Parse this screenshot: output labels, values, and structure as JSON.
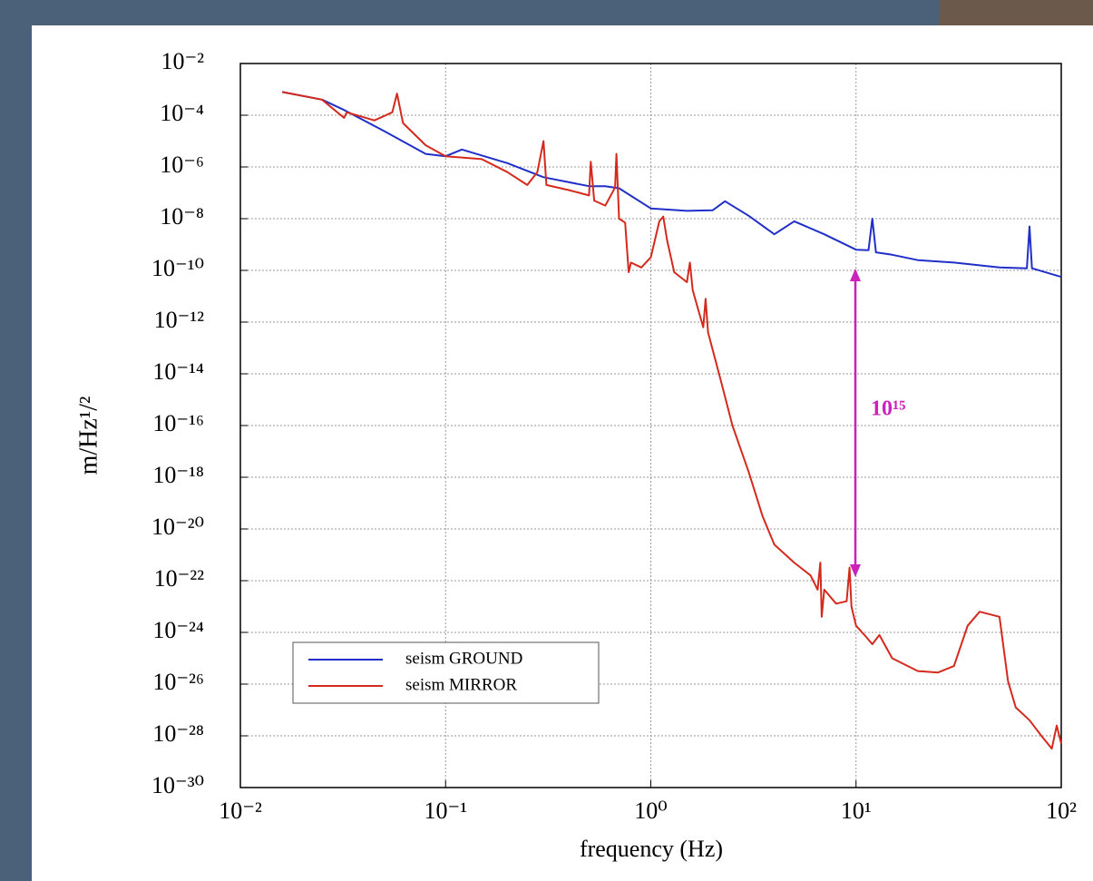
{
  "chart_data": {
    "type": "line",
    "xlabel": "frequency (Hz)",
    "ylabel": "m/Hz¹/²",
    "xscale": "log",
    "yscale": "log",
    "grid": true,
    "legend": "lower left",
    "xlim": [
      0.01,
      100
    ],
    "xticks": [
      {
        "value": 0.01,
        "label": "10⁻²"
      },
      {
        "value": 0.1,
        "label": "10⁻¹"
      },
      {
        "value": 1,
        "label": "10⁰"
      },
      {
        "value": 10,
        "label": "10¹"
      },
      {
        "value": 100,
        "label": "10²"
      }
    ],
    "ylim": [
      1e-30,
      0.01
    ],
    "yticks": [
      {
        "value": 0.01,
        "label": "10⁻²"
      },
      {
        "value": 0.0001,
        "label": "10⁻⁴"
      },
      {
        "value": 1e-06,
        "label": "10⁻⁶"
      },
      {
        "value": 1e-08,
        "label": "10⁻⁸"
      },
      {
        "value": 1e-10,
        "label": "10⁻¹⁰"
      },
      {
        "value": 1e-12,
        "label": "10⁻¹²"
      },
      {
        "value": 1e-14,
        "label": "10⁻¹⁴"
      },
      {
        "value": 1e-16,
        "label": "10⁻¹⁶"
      },
      {
        "value": 1e-18,
        "label": "10⁻¹⁸"
      },
      {
        "value": 1e-20,
        "label": "10⁻²⁰"
      },
      {
        "value": 1e-22,
        "label": "10⁻²²"
      },
      {
        "value": 1e-24,
        "label": "10⁻²⁴"
      },
      {
        "value": 1e-26,
        "label": "10⁻²⁶"
      },
      {
        "value": 1e-28,
        "label": "10⁻²⁸"
      },
      {
        "value": 1e-30,
        "label": "10⁻³⁰"
      }
    ],
    "annotations": [
      {
        "text": "10¹⁵"
      }
    ],
    "series": [
      {
        "name": "seism GROUND",
        "color": "#1f2fc8",
        "x": [
          0.016,
          0.025,
          0.032,
          0.05,
          0.08,
          0.1,
          0.12,
          0.2,
          0.3,
          0.5,
          0.6,
          0.7,
          1.0,
          1.5,
          2,
          2.3,
          3,
          4,
          5,
          7,
          10,
          11.5,
          12,
          12.5,
          15,
          20,
          30,
          50,
          68,
          70,
          72,
          100
        ],
        "values": [
          0.00079,
          0.0004,
          0.00016,
          2.5e-05,
          3.2e-06,
          2.6e-06,
          4.7e-06,
          1.4e-06,
          4e-07,
          1.8e-07,
          1.8e-07,
          1.5e-07,
          2.5e-08,
          2e-08,
          2.1e-08,
          4.7e-08,
          1.3e-08,
          2.5e-09,
          7.9e-09,
          2.5e-09,
          6.3e-10,
          6e-10,
          1e-08,
          5e-10,
          4e-10,
          2.5e-10,
          2e-10,
          1.3e-10,
          1.2e-10,
          5e-09,
          1.2e-10,
          5.6e-11
        ]
      },
      {
        "name": "seism MIRROR",
        "color": "#d42a1e",
        "x": [
          0.016,
          0.025,
          0.032,
          0.033,
          0.045,
          0.055,
          0.058,
          0.062,
          0.08,
          0.1,
          0.15,
          0.2,
          0.25,
          0.28,
          0.3,
          0.31,
          0.4,
          0.5,
          0.51,
          0.53,
          0.6,
          0.67,
          0.68,
          0.7,
          0.75,
          0.78,
          0.8,
          0.9,
          1.0,
          1.1,
          1.15,
          1.2,
          1.3,
          1.5,
          1.55,
          1.6,
          1.8,
          1.85,
          1.9,
          2.2,
          2.5,
          3,
          3.5,
          4,
          5,
          6,
          6.5,
          6.7,
          6.8,
          7,
          8,
          9,
          9.3,
          9.5,
          10,
          11,
          12,
          13,
          15,
          20,
          25,
          30,
          35,
          40,
          50,
          55,
          60,
          70,
          80,
          90,
          95,
          100
        ],
        "values": [
          0.00079,
          0.0004,
          7.9e-05,
          0.00013,
          6.3e-05,
          0.00013,
          0.00069,
          5e-05,
          6.9e-06,
          2.6e-06,
          2e-06,
          6.3e-07,
          2e-07,
          6.3e-07,
          1e-05,
          2e-07,
          1.26e-07,
          7.9e-08,
          1.6e-06,
          5e-08,
          3.2e-08,
          1.6e-07,
          3.2e-06,
          1e-08,
          7e-09,
          8.5e-11,
          2e-10,
          1.3e-10,
          3.2e-10,
          7.9e-09,
          1.2e-08,
          1.5e-09,
          8.5e-11,
          3.5e-11,
          2e-10,
          1.7e-11,
          6.3e-13,
          7.9e-12,
          4e-13,
          5e-15,
          1e-16,
          1.6e-18,
          3.2e-20,
          2.5e-21,
          5e-22,
          1.6e-22,
          4.5e-23,
          5e-22,
          4e-24,
          4.5e-23,
          1.3e-23,
          1.6e-23,
          3.2e-22,
          1e-23,
          1.8e-24,
          7.9e-25,
          3.5e-25,
          7.9e-25,
          1e-25,
          3.2e-26,
          2.8e-26,
          5e-26,
          1.8e-24,
          6.3e-24,
          4e-24,
          1.3e-26,
          1.26e-27,
          4e-28,
          1e-28,
          3.2e-29,
          2.5e-28,
          5e-29
        ]
      }
    ]
  }
}
